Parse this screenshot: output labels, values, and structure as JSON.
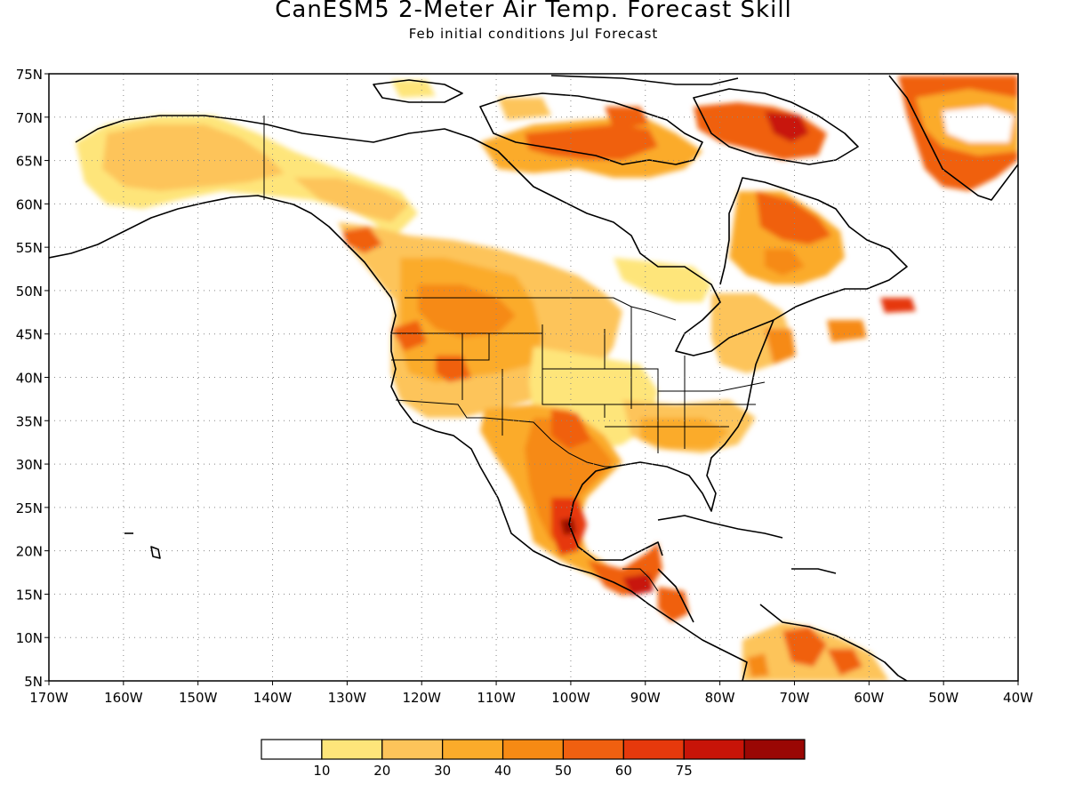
{
  "header": {
    "title": "CanESM5 2-Meter Air Temp. Forecast Skill",
    "subtitle": "Feb initial conditions  Jul Forecast"
  },
  "map": {
    "lat_labels": [
      "75N",
      "70N",
      "65N",
      "60N",
      "55N",
      "50N",
      "45N",
      "40N",
      "35N",
      "30N",
      "25N",
      "20N",
      "15N",
      "10N",
      "5N"
    ],
    "lon_labels": [
      "170W",
      "160W",
      "150W",
      "140W",
      "130W",
      "120W",
      "110W",
      "100W",
      "90W",
      "80W",
      "70W",
      "60W",
      "50W",
      "40W"
    ],
    "lat_range": [
      5,
      75
    ],
    "lon_range": [
      -170,
      -40
    ],
    "grid": "dotted"
  },
  "colorbar": {
    "bins": [
      {
        "color": "#ffffff"
      },
      {
        "color": "#fee57a",
        "label": "10"
      },
      {
        "color": "#fdc45a",
        "label": "20"
      },
      {
        "color": "#fbab2a",
        "label": "30"
      },
      {
        "color": "#f68a14",
        "label": "40"
      },
      {
        "color": "#f06010",
        "label": "50"
      },
      {
        "color": "#e6390c",
        "label": "60"
      },
      {
        "color": "#c81408",
        "label": "75"
      },
      {
        "color": "#9a0704"
      }
    ]
  }
}
